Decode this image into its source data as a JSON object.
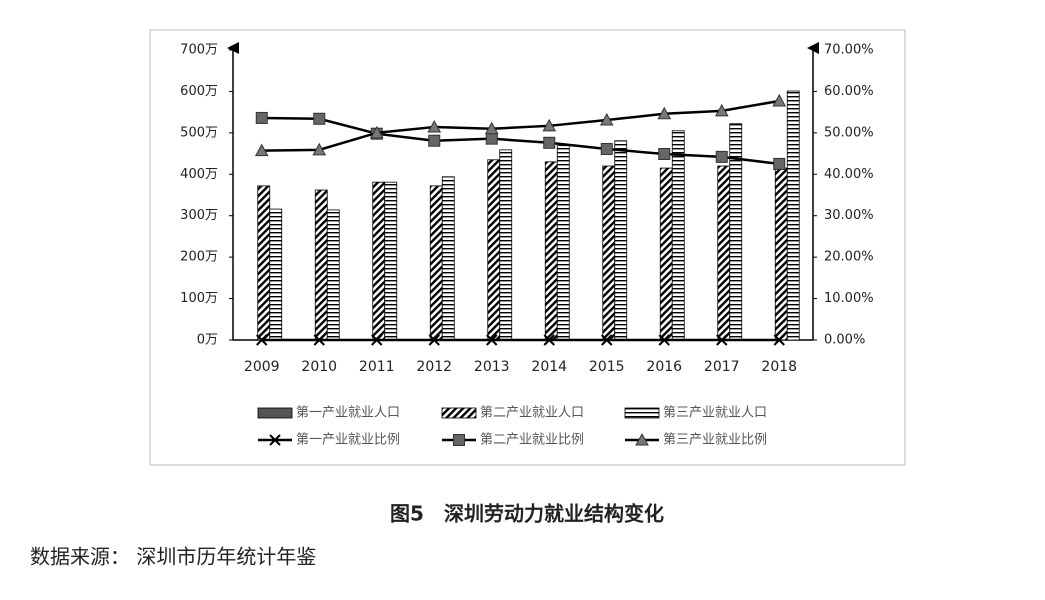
{
  "chart_data": {
    "type": "combo",
    "categories": [
      "2009",
      "2010",
      "2011",
      "2012",
      "2013",
      "2014",
      "2015",
      "2016",
      "2017",
      "2018"
    ],
    "series": [
      {
        "name": "第一产业就业人口",
        "type": "bar",
        "color": "#555555",
        "pattern": "solid",
        "values": [
          0,
          0,
          0,
          0,
          0,
          0,
          0,
          0,
          0,
          0
        ]
      },
      {
        "name": "第二产业就业人口",
        "type": "bar",
        "color": "#000000",
        "pattern": "diagonal",
        "values": [
          372,
          362,
          381,
          372,
          435,
          430,
          420,
          415,
          420,
          415
        ]
      },
      {
        "name": "第三产业就业人口",
        "type": "bar",
        "color": "#000000",
        "pattern": "horizontal",
        "values": [
          316,
          314,
          381,
          394,
          459,
          469,
          481,
          505,
          522,
          601
        ]
      },
      {
        "name": "第一产业就业比例",
        "type": "line",
        "axis": "y2",
        "color": "#000000",
        "marker": "x",
        "values": [
          0,
          0,
          0,
          0,
          0,
          0,
          0,
          0,
          0,
          0
        ]
      },
      {
        "name": "第二产业就业比例",
        "type": "line",
        "axis": "y2",
        "color": "#000000",
        "marker": "square",
        "values": [
          53.6,
          53.4,
          49.8,
          48.1,
          48.6,
          47.6,
          46.1,
          44.9,
          44.2,
          42.5
        ]
      },
      {
        "name": "第三产业就业比例",
        "type": "line",
        "axis": "y2",
        "color": "#000000",
        "marker": "triangle",
        "values": [
          45.7,
          45.9,
          50.0,
          51.4,
          51.0,
          51.7,
          53.1,
          54.6,
          55.3,
          57.7
        ]
      }
    ],
    "ylim": [
      0,
      700
    ],
    "yticks": [
      {
        "value": 0,
        "label": "0万"
      },
      {
        "value": 100,
        "label": "100万"
      },
      {
        "value": 200,
        "label": "200万"
      },
      {
        "value": 300,
        "label": "300万"
      },
      {
        "value": 400,
        "label": "400万"
      },
      {
        "value": 500,
        "label": "500万"
      },
      {
        "value": 600,
        "label": "600万"
      },
      {
        "value": 700,
        "label": "700万"
      }
    ],
    "y2lim": [
      0,
      70
    ],
    "y2ticks": [
      {
        "value": 0,
        "label": "0.00%"
      },
      {
        "value": 10,
        "label": "10.00%"
      },
      {
        "value": 20,
        "label": "20.00%"
      },
      {
        "value": 30,
        "label": "30.00%"
      },
      {
        "value": 40,
        "label": "40.00%"
      },
      {
        "value": 50,
        "label": "50.00%"
      },
      {
        "value": 60,
        "label": "60.00%"
      },
      {
        "value": 70,
        "label": "70.00%"
      }
    ],
    "grid": false
  },
  "caption": "图5　深圳劳动力就业结构变化",
  "source": "数据来源： 深圳市历年统计年鉴"
}
